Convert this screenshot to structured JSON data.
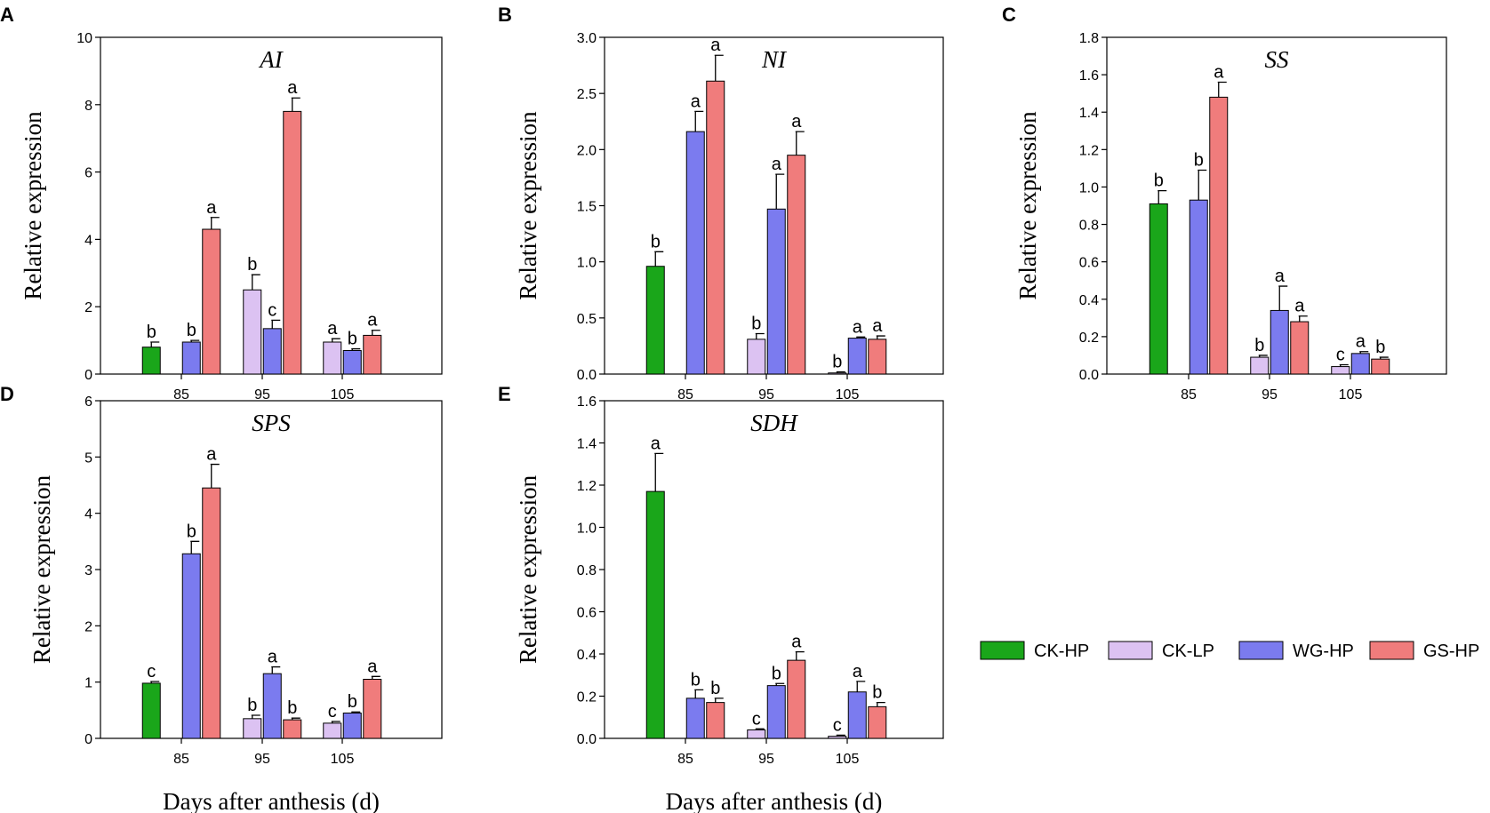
{
  "figure": {
    "xlabel": "Days after anthesis (d)",
    "ylabel": "Relative expression"
  },
  "colors": {
    "CK-HP": "#1aa61a",
    "CK-LP": "#dcc2f2",
    "WG-HP": "#7b7bef",
    "GS-HP": "#f07c7c"
  },
  "legend": {
    "items": [
      "CK-HP",
      "CK-LP",
      "WG-HP",
      "GS-HP"
    ]
  },
  "chart_data": [
    {
      "id": "A",
      "panel_letter": "A",
      "type": "bar",
      "title": "AI",
      "categories": [
        "85",
        "95",
        "105"
      ],
      "ylim": [
        0,
        10
      ],
      "yticks": [
        0,
        2,
        4,
        6,
        8,
        10
      ],
      "ylabel": "Relative expression",
      "xlabel": "",
      "series": [
        {
          "name": "CK-HP",
          "values": [
            0.8,
            null,
            null
          ],
          "errors": [
            0.15,
            null,
            null
          ],
          "letters": [
            "b",
            null,
            null
          ]
        },
        {
          "name": "CK-LP",
          "values": [
            null,
            2.5,
            0.95
          ],
          "errors": [
            null,
            0.45,
            0.1
          ],
          "letters": [
            null,
            "b",
            "a"
          ]
        },
        {
          "name": "WG-HP",
          "values": [
            0.95,
            1.35,
            0.7
          ],
          "errors": [
            0.05,
            0.25,
            0.05
          ],
          "letters": [
            "b",
            "c",
            "b"
          ]
        },
        {
          "name": "GS-HP",
          "values": [
            4.3,
            7.8,
            1.15
          ],
          "errors": [
            0.35,
            0.4,
            0.15
          ],
          "letters": [
            "a",
            "a",
            "a"
          ]
        }
      ]
    },
    {
      "id": "B",
      "panel_letter": "B",
      "type": "bar",
      "title": "NI",
      "categories": [
        "85",
        "95",
        "105"
      ],
      "ylim": [
        0,
        3.0
      ],
      "yticks": [
        "0.0",
        "0.5",
        "1.0",
        "1.5",
        "2.0",
        "2.5",
        "3.0"
      ],
      "ylabel": "Relative expression",
      "xlabel": "",
      "series": [
        {
          "name": "CK-HP",
          "values": [
            0.96,
            null,
            null
          ],
          "errors": [
            0.13,
            null,
            null
          ],
          "letters": [
            "b",
            null,
            null
          ]
        },
        {
          "name": "CK-LP",
          "values": [
            null,
            0.31,
            0.01
          ],
          "errors": [
            null,
            0.05,
            0.01
          ],
          "letters": [
            null,
            "b",
            "b"
          ]
        },
        {
          "name": "WG-HP",
          "values": [
            2.16,
            1.47,
            0.32
          ],
          "errors": [
            0.18,
            0.31,
            0.01
          ],
          "letters": [
            "a",
            "a",
            "a"
          ]
        },
        {
          "name": "GS-HP",
          "values": [
            2.61,
            1.95,
            0.31
          ],
          "errors": [
            0.23,
            0.21,
            0.03
          ],
          "letters": [
            "a",
            "a",
            "a"
          ]
        }
      ]
    },
    {
      "id": "C",
      "panel_letter": "C",
      "type": "bar",
      "title": "SS",
      "categories": [
        "85",
        "95",
        "105"
      ],
      "ylim": [
        0,
        1.8
      ],
      "yticks": [
        "0.0",
        "0.2",
        "0.4",
        "0.6",
        "0.8",
        "1.0",
        "1.2",
        "1.4",
        "1.6",
        "1.8"
      ],
      "ylabel": "Relative expression",
      "xlabel": "",
      "series": [
        {
          "name": "CK-HP",
          "values": [
            0.91,
            null,
            null
          ],
          "errors": [
            0.07,
            null,
            null
          ],
          "letters": [
            "b",
            null,
            null
          ]
        },
        {
          "name": "CK-LP",
          "values": [
            null,
            0.09,
            0.04
          ],
          "errors": [
            null,
            0.01,
            0.01
          ],
          "letters": [
            null,
            "b",
            "c"
          ]
        },
        {
          "name": "WG-HP",
          "values": [
            0.93,
            0.34,
            0.11
          ],
          "errors": [
            0.16,
            0.13,
            0.01
          ],
          "letters": [
            "b",
            "a",
            "a"
          ]
        },
        {
          "name": "GS-HP",
          "values": [
            1.48,
            0.28,
            0.08
          ],
          "errors": [
            0.08,
            0.03,
            0.01
          ],
          "letters": [
            "a",
            "a",
            "b"
          ]
        }
      ]
    },
    {
      "id": "D",
      "panel_letter": "D",
      "type": "bar",
      "title": "SPS",
      "categories": [
        "85",
        "95",
        "105"
      ],
      "ylim": [
        0,
        6
      ],
      "yticks": [
        0,
        1,
        2,
        3,
        4,
        5,
        6
      ],
      "ylabel": "Relative expression",
      "xlabel": "Days after anthesis (d)",
      "series": [
        {
          "name": "CK-HP",
          "values": [
            0.98,
            null,
            null
          ],
          "errors": [
            0.03,
            null,
            null
          ],
          "letters": [
            "c",
            null,
            null
          ]
        },
        {
          "name": "CK-LP",
          "values": [
            null,
            0.35,
            0.27
          ],
          "errors": [
            null,
            0.06,
            0.03
          ],
          "letters": [
            null,
            "b",
            "c"
          ]
        },
        {
          "name": "WG-HP",
          "values": [
            3.28,
            1.15,
            0.45
          ],
          "errors": [
            0.22,
            0.12,
            0.02
          ],
          "letters": [
            "b",
            "a",
            "b"
          ]
        },
        {
          "name": "GS-HP",
          "values": [
            4.45,
            0.33,
            1.05
          ],
          "errors": [
            0.42,
            0.03,
            0.05
          ],
          "letters": [
            "a",
            "b",
            "a"
          ]
        }
      ]
    },
    {
      "id": "E",
      "panel_letter": "E",
      "type": "bar",
      "title": "SDH",
      "categories": [
        "85",
        "95",
        "105"
      ],
      "ylim": [
        0,
        1.6
      ],
      "yticks": [
        "0.0",
        "0.2",
        "0.4",
        "0.6",
        "0.8",
        "1.0",
        "1.2",
        "1.4",
        "1.6"
      ],
      "ylabel": "Relative expression",
      "xlabel": "Days after anthesis (d)",
      "series": [
        {
          "name": "CK-HP",
          "values": [
            1.17,
            null,
            null
          ],
          "errors": [
            0.18,
            null,
            null
          ],
          "letters": [
            "a",
            null,
            null
          ]
        },
        {
          "name": "CK-LP",
          "values": [
            null,
            0.04,
            0.01
          ],
          "errors": [
            null,
            0.005,
            0.005
          ],
          "letters": [
            null,
            "c",
            "c"
          ]
        },
        {
          "name": "WG-HP",
          "values": [
            0.19,
            0.25,
            0.22
          ],
          "errors": [
            0.04,
            0.01,
            0.05
          ],
          "letters": [
            "b",
            "b",
            "a"
          ]
        },
        {
          "name": "GS-HP",
          "values": [
            0.17,
            0.37,
            0.15
          ],
          "errors": [
            0.02,
            0.04,
            0.02
          ],
          "letters": [
            "b",
            "a",
            "b"
          ]
        }
      ]
    }
  ]
}
